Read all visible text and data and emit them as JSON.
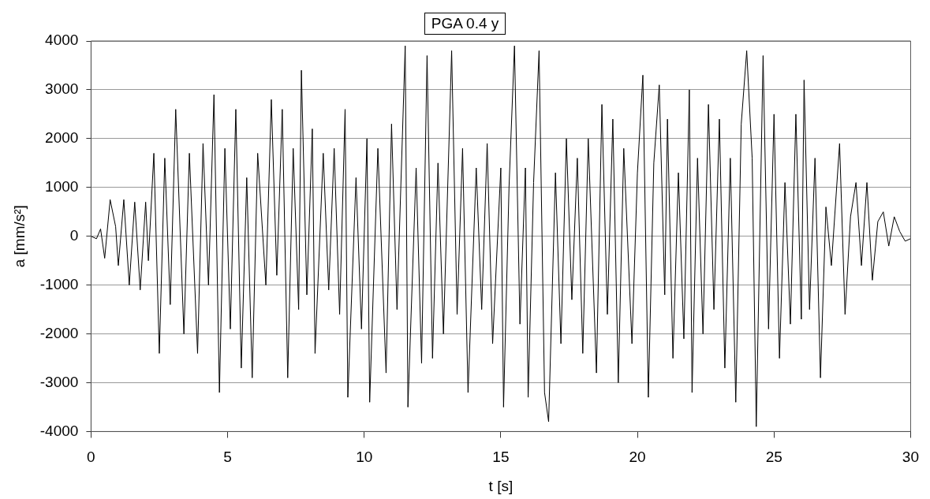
{
  "chart_data": {
    "type": "line",
    "title": "PGA 0.4 y",
    "xlabel": "t [s]",
    "ylabel": "a [mm/s²]",
    "x": [
      0,
      0.2,
      0.35,
      0.5,
      0.7,
      0.9,
      1.0,
      1.2,
      1.4,
      1.6,
      1.8,
      2.0,
      2.1,
      2.3,
      2.5,
      2.7,
      2.9,
      3.1,
      3.4,
      3.6,
      3.9,
      4.1,
      4.3,
      4.5,
      4.7,
      4.9,
      5.1,
      5.3,
      5.5,
      5.7,
      5.9,
      6.1,
      6.4,
      6.6,
      6.8,
      7.0,
      7.2,
      7.4,
      7.6,
      7.7,
      7.9,
      8.1,
      8.2,
      8.5,
      8.7,
      8.9,
      9.1,
      9.3,
      9.4,
      9.7,
      9.9,
      10.1,
      10.2,
      10.5,
      10.8,
      11.0,
      11.2,
      11.5,
      11.6,
      11.9,
      12.1,
      12.3,
      12.5,
      12.7,
      12.9,
      13.2,
      13.4,
      13.6,
      13.8,
      14.1,
      14.3,
      14.5,
      14.7,
      15.0,
      15.1,
      15.3,
      15.5,
      15.7,
      15.9,
      16.0,
      16.2,
      16.4,
      16.6,
      16.75,
      17.0,
      17.2,
      17.4,
      17.6,
      17.8,
      18.0,
      18.2,
      18.5,
      18.7,
      18.9,
      19.1,
      19.3,
      19.5,
      19.8,
      20.0,
      20.2,
      20.4,
      20.6,
      20.8,
      21.0,
      21.1,
      21.3,
      21.5,
      21.7,
      21.9,
      22.0,
      22.2,
      22.4,
      22.6,
      22.8,
      23.0,
      23.2,
      23.4,
      23.6,
      23.8,
      24.0,
      24.2,
      24.35,
      24.6,
      24.8,
      25.0,
      25.2,
      25.4,
      25.6,
      25.8,
      26.0,
      26.1,
      26.3,
      26.5,
      26.7,
      26.9,
      27.1,
      27.4,
      27.6,
      27.8,
      28.0,
      28.2,
      28.4,
      28.6,
      28.8,
      29.0,
      29.2,
      29.4,
      29.6,
      29.8,
      30.0
    ],
    "series": [
      {
        "color": "#000000",
        "values": [
          0,
          -50,
          150,
          -450,
          750,
          200,
          -600,
          750,
          -1000,
          700,
          -1100,
          700,
          -500,
          1700,
          -2400,
          1600,
          -1400,
          2600,
          -2000,
          1700,
          -2400,
          1900,
          -1000,
          2900,
          -3200,
          1800,
          -1900,
          2600,
          -2700,
          1200,
          -2900,
          1700,
          -1000,
          2800,
          -800,
          2600,
          -2900,
          1800,
          -1500,
          3400,
          -1200,
          2200,
          -2400,
          1700,
          -1100,
          1800,
          -1600,
          2600,
          -3300,
          1200,
          -1900,
          2000,
          -3400,
          1800,
          -2800,
          2300,
          -1500,
          3900,
          -3500,
          1400,
          -2600,
          3700,
          -2500,
          1500,
          -2000,
          3800,
          -1600,
          1800,
          -3200,
          1400,
          -1500,
          1900,
          -2200,
          1400,
          -3500,
          1000,
          3900,
          -1800,
          1400,
          -3300,
          1100,
          3800,
          -3200,
          -3800,
          1300,
          -2200,
          2000,
          -1300,
          1600,
          -2400,
          2000,
          -2800,
          2700,
          -1600,
          2400,
          -3000,
          1800,
          -2200,
          1300,
          3300,
          -3300,
          1500,
          3100,
          -1200,
          2400,
          -2500,
          1300,
          -2100,
          3000,
          -3200,
          1600,
          -2000,
          2700,
          -1500,
          2400,
          -2700,
          1600,
          -3400,
          2300,
          3800,
          1600,
          -3900,
          3700,
          -1900,
          2500,
          -2500,
          1100,
          -1800,
          2500,
          -1700,
          3200,
          -1500,
          1600,
          -2900,
          600,
          -600,
          1900,
          -1600,
          400,
          1100,
          -600,
          1100,
          -900,
          300,
          500,
          -200,
          400,
          100,
          -100,
          -50
        ]
      }
    ],
    "xlim": [
      0,
      30
    ],
    "xticks": [
      0,
      5,
      10,
      15,
      20,
      25,
      30
    ],
    "ylim": [
      -4000,
      4000
    ],
    "yticks": [
      -4000,
      -3000,
      -2000,
      -1000,
      0,
      1000,
      2000,
      3000,
      4000
    ],
    "grid": "y",
    "legend": false,
    "marker": "none",
    "line_style": "solid"
  }
}
